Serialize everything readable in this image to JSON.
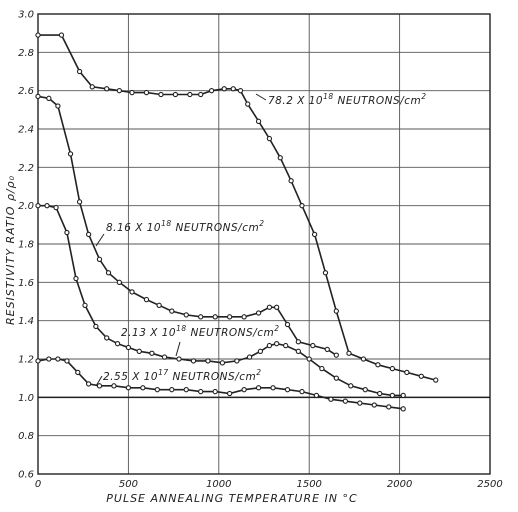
{
  "chart_data": {
    "type": "line",
    "xlabel": "PULSE ANNEALING TEMPERATURE IN °C",
    "ylabel": "RESISTIVITY RATIO ρ/ρ₀",
    "xlim": [
      0,
      2500
    ],
    "ylim": [
      0.6,
      3.0
    ],
    "xticks": [
      "0",
      "500",
      "1000",
      "1500",
      "2000",
      "2500"
    ],
    "yticks": [
      "0.6",
      "0.8",
      "1.0",
      "1.2",
      "1.4",
      "1.6",
      "1.8",
      "2.0",
      "2.2",
      "2.4",
      "2.6",
      "2.8",
      "3.0"
    ],
    "grid": true,
    "reference_line_y": 1.0,
    "annotations": [
      {
        "text": "78.2 X 10",
        "sup": "18",
        "rest": " NEUTRONS/cm",
        "sup2": "2",
        "series": 0
      },
      {
        "text": "8.16 X 10",
        "sup": "18",
        "rest": " NEUTRONS/cm",
        "sup2": "2",
        "series": 1
      },
      {
        "text": "2.13 X 10",
        "sup": "18",
        "rest": " NEUTRONS/cm",
        "sup2": "2",
        "series": 2
      },
      {
        "text": "2.55 X 10",
        "sup": "17",
        "rest": " NEUTRONS/cm",
        "sup2": "2",
        "series": 3
      }
    ],
    "series": [
      {
        "x": [
          0,
          130,
          230,
          300,
          380,
          450,
          520,
          600,
          680,
          760,
          840,
          900,
          960,
          1030,
          1080,
          1120,
          1160,
          1220,
          1280,
          1340,
          1400,
          1460,
          1530,
          1590,
          1650,
          1720,
          1800,
          1880,
          1960,
          2040,
          2120,
          2200
        ],
        "y": [
          2.89,
          2.89,
          2.7,
          2.62,
          2.61,
          2.6,
          2.59,
          2.59,
          2.58,
          2.58,
          2.58,
          2.58,
          2.6,
          2.61,
          2.61,
          2.6,
          2.53,
          2.44,
          2.35,
          2.25,
          2.13,
          2.0,
          1.85,
          1.65,
          1.45,
          1.23,
          1.2,
          1.17,
          1.15,
          1.13,
          1.11,
          1.09
        ]
      },
      {
        "x": [
          0,
          60,
          110,
          180,
          230,
          280,
          340,
          390,
          450,
          520,
          600,
          670,
          740,
          820,
          900,
          980,
          1060,
          1140,
          1220,
          1280,
          1320,
          1380,
          1440,
          1520,
          1600,
          1650
        ],
        "y": [
          2.57,
          2.56,
          2.52,
          2.27,
          2.02,
          1.85,
          1.72,
          1.65,
          1.6,
          1.55,
          1.51,
          1.48,
          1.45,
          1.43,
          1.42,
          1.42,
          1.42,
          1.42,
          1.44,
          1.47,
          1.47,
          1.38,
          1.29,
          1.27,
          1.25,
          1.22
        ]
      },
      {
        "x": [
          0,
          50,
          100,
          160,
          210,
          260,
          320,
          380,
          440,
          500,
          560,
          630,
          700,
          780,
          860,
          940,
          1020,
          1100,
          1170,
          1230,
          1280,
          1320,
          1370,
          1440,
          1500,
          1570,
          1650,
          1730,
          1810,
          1890,
          1960,
          2020
        ],
        "y": [
          2.0,
          2.0,
          1.99,
          1.86,
          1.62,
          1.48,
          1.37,
          1.31,
          1.28,
          1.26,
          1.24,
          1.23,
          1.21,
          1.2,
          1.19,
          1.19,
          1.18,
          1.19,
          1.21,
          1.24,
          1.27,
          1.28,
          1.27,
          1.24,
          1.2,
          1.15,
          1.1,
          1.06,
          1.04,
          1.02,
          1.01,
          1.01
        ]
      },
      {
        "x": [
          0,
          60,
          110,
          160,
          220,
          280,
          340,
          420,
          500,
          580,
          660,
          740,
          820,
          900,
          980,
          1060,
          1140,
          1220,
          1300,
          1380,
          1460,
          1540,
          1620,
          1700,
          1780,
          1860,
          1940,
          2020
        ],
        "y": [
          1.19,
          1.2,
          1.2,
          1.19,
          1.13,
          1.07,
          1.06,
          1.06,
          1.05,
          1.05,
          1.04,
          1.04,
          1.04,
          1.03,
          1.03,
          1.02,
          1.04,
          1.05,
          1.05,
          1.04,
          1.03,
          1.01,
          0.99,
          0.98,
          0.97,
          0.96,
          0.95,
          0.94
        ]
      }
    ]
  }
}
